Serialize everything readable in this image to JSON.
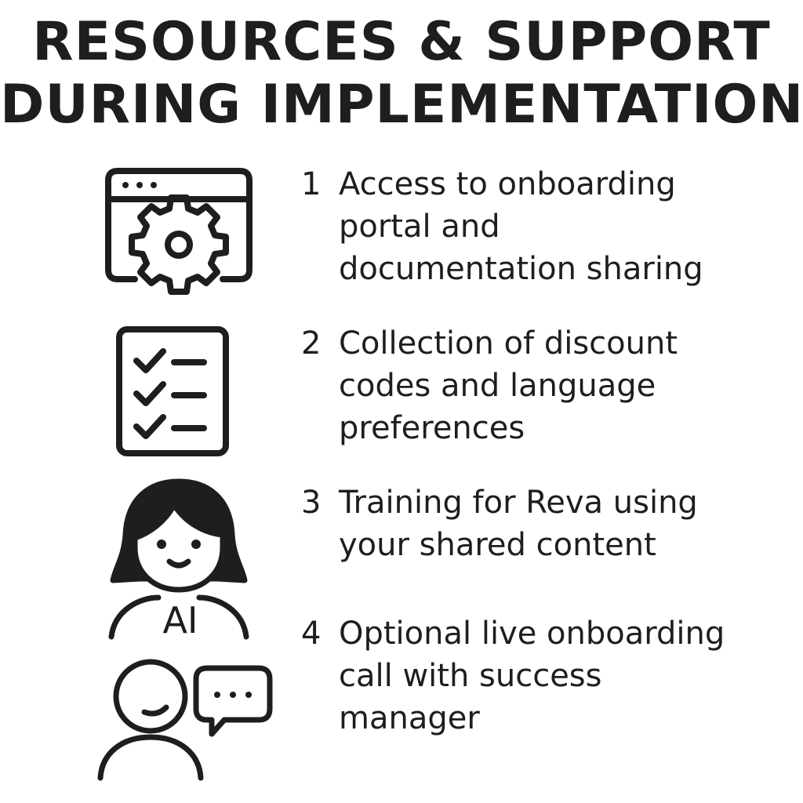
{
  "title": {
    "line1": "RESOURCES & SUPPORT",
    "line2": "DURING IMPLEMENTATION"
  },
  "icons": {
    "portal": "browser-window-gear-icon",
    "checklist": "checklist-icon",
    "ai_avatar": "ai-avatar-icon",
    "ai_avatar_label": "AI",
    "support": "person-chat-bubble-icon"
  },
  "steps": [
    {
      "number": "1",
      "lines": [
        "Access to onboarding",
        "portal and",
        "documentation sharing"
      ]
    },
    {
      "number": "2",
      "lines": [
        "Collection of discount",
        "codes and language",
        "preferences"
      ]
    },
    {
      "number": "3",
      "lines": [
        "Training for Reva using",
        "your shared content"
      ]
    },
    {
      "number": "4",
      "lines": [
        "Optional live onboarding",
        "call with success",
        "manager"
      ]
    }
  ],
  "colors": {
    "ink": "#1e1e1e",
    "background": "#ffffff"
  }
}
